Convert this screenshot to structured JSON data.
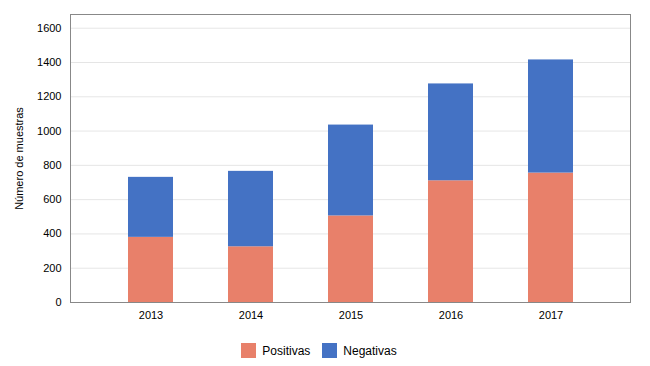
{
  "chart_data": {
    "type": "bar",
    "stacked": true,
    "categories": [
      "2013",
      "2014",
      "2015",
      "2016",
      "2017"
    ],
    "series": [
      {
        "name": "Positivas",
        "color": "#E8806A",
        "values": [
          380,
          325,
          505,
          710,
          755
        ]
      },
      {
        "name": "Negativas",
        "color": "#4472C4",
        "values": [
          350,
          440,
          530,
          565,
          660
        ]
      }
    ],
    "ylabel": "Número de muestras",
    "ylim": [
      0,
      1680
    ],
    "yticks": [
      0,
      200,
      400,
      600,
      800,
      1000,
      1200,
      1400,
      1600
    ],
    "grid": true,
    "legend": "bottom"
  }
}
